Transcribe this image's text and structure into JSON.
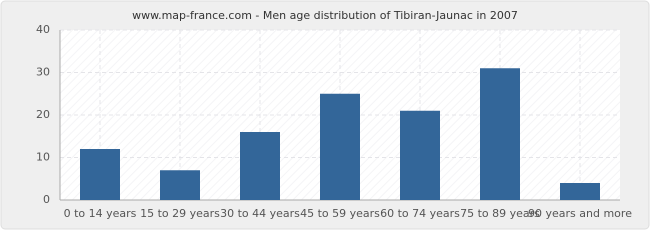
{
  "chart_data": {
    "type": "bar",
    "title": "www.map-france.com - Men age distribution of Tibiran-Jaunac in 2007",
    "categories": [
      "0 to 14 years",
      "15 to 29 years",
      "30 to 44 years",
      "45 to 59 years",
      "60 to 74 years",
      "75 to 89 years",
      "90 years and more"
    ],
    "values": [
      12,
      7,
      16,
      25,
      21,
      31,
      4
    ],
    "color": "#336699",
    "ylim": [
      0,
      40
    ],
    "yticks": [
      0,
      10,
      20,
      30,
      40
    ],
    "grid": true
  }
}
